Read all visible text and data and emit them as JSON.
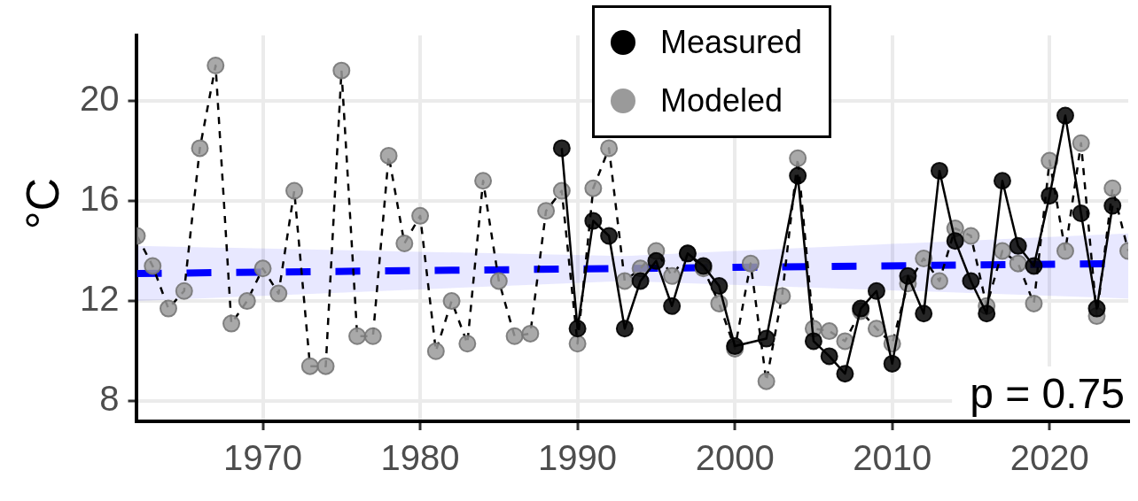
{
  "chart_data": {
    "type": "line",
    "ylabel": "°C",
    "xlim": [
      1962,
      2025
    ],
    "ylim": [
      7.2,
      22.6
    ],
    "xticks": [
      1970,
      1980,
      1990,
      2000,
      2010,
      2020
    ],
    "yticks": [
      8,
      12,
      16,
      20
    ],
    "grid": true,
    "legend": "top",
    "marker": "circle",
    "annotations": [
      "p = 0.75"
    ],
    "series": [
      {
        "color": "#0000ff",
        "line_style": "dashed",
        "marker": "none",
        "x": [
          1962,
          1993,
          2025
        ],
        "values": [
          13.1,
          13.3,
          13.5
        ],
        "lower": [
          12.0,
          12.8,
          12.1
        ],
        "upper": [
          14.2,
          13.8,
          14.7
        ]
      },
      {
        "name": "Measured",
        "color": "#000000",
        "line_style": "solid",
        "x": [
          1989,
          1990,
          1991,
          1992,
          1993,
          1994,
          1995,
          1996,
          1997,
          1998,
          1999,
          2000,
          2002,
          2004,
          2005,
          2006,
          2007,
          2008,
          2009,
          2010,
          2011,
          2012,
          2013,
          2014,
          2015,
          2016,
          2017,
          2018,
          2019,
          2020,
          2021,
          2022,
          2023,
          2024
        ],
        "values": [
          18.1,
          10.9,
          15.2,
          14.6,
          10.9,
          12.8,
          13.6,
          11.8,
          13.9,
          13.4,
          12.6,
          10.2,
          10.5,
          17.0,
          10.4,
          9.8,
          9.1,
          11.7,
          12.4,
          9.5,
          13.0,
          11.5,
          17.2,
          14.4,
          12.8,
          11.5,
          16.8,
          14.2,
          13.4,
          16.2,
          19.4,
          15.5,
          11.7,
          15.8
        ]
      },
      {
        "name": "Modeled",
        "color": "#9a9a9a",
        "line_style": "dashed",
        "x": [
          1962,
          1963,
          1964,
          1965,
          1966,
          1967,
          1968,
          1969,
          1970,
          1971,
          1972,
          1973,
          1974,
          1975,
          1976,
          1977,
          1978,
          1979,
          1980,
          1981,
          1982,
          1983,
          1984,
          1985,
          1986,
          1987,
          1988,
          1989,
          1990,
          1991,
          1992,
          1993,
          1994,
          1995,
          1996,
          1997,
          1998,
          1999,
          2000,
          2001,
          2002,
          2003,
          2004,
          2005,
          2006,
          2007,
          2008,
          2009,
          2010,
          2011,
          2012,
          2013,
          2014,
          2015,
          2016,
          2017,
          2018,
          2019,
          2020,
          2021,
          2022,
          2023,
          2024,
          2025
        ],
        "values": [
          14.6,
          13.4,
          11.7,
          12.4,
          18.1,
          21.4,
          11.1,
          12.0,
          13.3,
          12.3,
          16.4,
          9.4,
          9.4,
          21.2,
          10.6,
          10.6,
          17.8,
          14.3,
          15.4,
          10.0,
          12.0,
          10.3,
          16.8,
          12.8,
          10.6,
          10.7,
          15.6,
          16.4,
          10.3,
          16.5,
          18.1,
          12.8,
          13.3,
          14.0,
          13.0,
          13.9,
          13.3,
          11.9,
          10.1,
          13.5,
          8.8,
          12.2,
          17.7,
          10.9,
          10.8,
          10.4,
          11.6,
          10.9,
          10.3,
          12.7,
          13.7,
          12.8,
          14.9,
          14.6,
          11.8,
          14.0,
          13.5,
          11.9,
          17.6,
          14.0,
          18.3,
          11.4,
          16.5,
          14.0
        ]
      }
    ]
  }
}
